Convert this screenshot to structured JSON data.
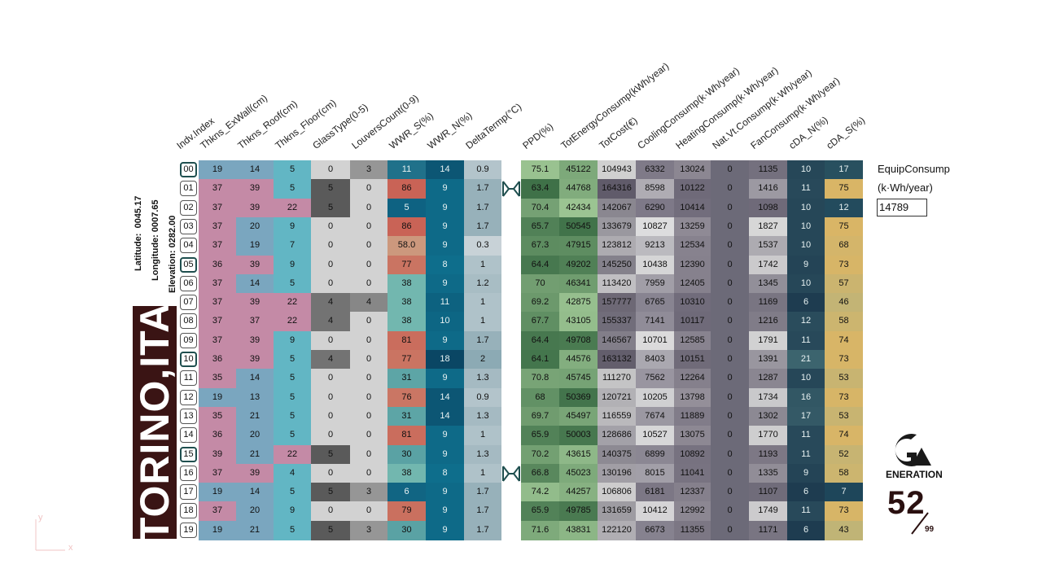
{
  "location": {
    "latitude_label": "Latitude:",
    "latitude_value": "0045.17",
    "longitude_label": "Longitude:",
    "longitude_value": "0007.65",
    "elevation_label": "Elevation:",
    "elevation_value": "0282.00",
    "city": "TORINO,ITA"
  },
  "equip": {
    "label1": "EquipConsump",
    "label2": "(k·Wh/year)",
    "value": "14789"
  },
  "logo": {
    "text": "ENERATION",
    "count": "52",
    "total": "99"
  },
  "axis_hint": {
    "y": "y",
    "x": "x"
  },
  "colors": {
    "pink": "#c48aa6",
    "blue": "#7aa6bf",
    "teal": "#62b6c4",
    "green_dark": "#567f5a",
    "dark_teal": "#1f4f5a",
    "gold": "#d9b566",
    "gray": "#8e8e8e",
    "slate": "#6c6a78"
  },
  "chart_data": {
    "type": "table",
    "columns": [
      "Indv.Index",
      "Thkns_ExWall(cm)",
      "Thkns_Roof(cm)",
      "Thkns_Floor(cm)",
      "GlassType(0-5)",
      "LouversCount(0-9)",
      "WWR_S(%)",
      "WWR_N(%)",
      "DeltaTermp(°C)",
      "PPD(%)",
      "TotEnergyConsump(kWh/year)",
      "TotCost(€)",
      "CoolingConsump(k·Wh/year)",
      "HeatingConsump(k·Wh/year)",
      "Nat.Vt.Consump(k·Wh/year)",
      "FanConsump(k·Wh/year)",
      "cDA_N(%)",
      "cDA_S(%)"
    ],
    "rows": [
      [
        "00",
        "19",
        "14",
        "5",
        "0",
        "3",
        "11",
        "14",
        "0.9",
        "75.1",
        "45122",
        "104943",
        "6332",
        "13024",
        "0",
        "1135",
        "10",
        "17"
      ],
      [
        "01",
        "37",
        "39",
        "5",
        "5",
        "0",
        "86",
        "9",
        "1.7",
        "63.4",
        "44768",
        "164316",
        "8598",
        "10122",
        "0",
        "1416",
        "11",
        "75"
      ],
      [
        "02",
        "37",
        "39",
        "22",
        "5",
        "0",
        "5",
        "9",
        "1.7",
        "70.4",
        "42434",
        "142067",
        "6290",
        "10414",
        "0",
        "1098",
        "10",
        "12"
      ],
      [
        "03",
        "37",
        "20",
        "9",
        "0",
        "0",
        "86",
        "9",
        "1.7",
        "65.7",
        "50545",
        "133679",
        "10827",
        "13259",
        "0",
        "1827",
        "10",
        "75"
      ],
      [
        "04",
        "37",
        "19",
        "7",
        "0",
        "0",
        "58.0",
        "9",
        "0.3",
        "67.3",
        "47915",
        "123812",
        "9213",
        "12534",
        "0",
        "1537",
        "10",
        "68"
      ],
      [
        "05",
        "36",
        "39",
        "9",
        "0",
        "0",
        "77",
        "8",
        "1",
        "64.4",
        "49202",
        "145250",
        "10438",
        "12390",
        "0",
        "1742",
        "9",
        "73"
      ],
      [
        "06",
        "37",
        "14",
        "5",
        "0",
        "0",
        "38",
        "9",
        "1.2",
        "70",
        "46341",
        "113420",
        "7959",
        "12405",
        "0",
        "1345",
        "10",
        "57"
      ],
      [
        "07",
        "37",
        "39",
        "22",
        "4",
        "4",
        "38",
        "11",
        "1",
        "69.2",
        "42875",
        "157777",
        "6765",
        "10310",
        "0",
        "1169",
        "6",
        "46"
      ],
      [
        "08",
        "37",
        "37",
        "22",
        "4",
        "0",
        "38",
        "10",
        "1",
        "67.7",
        "43105",
        "155337",
        "7141",
        "10117",
        "0",
        "1216",
        "12",
        "58"
      ],
      [
        "09",
        "37",
        "39",
        "9",
        "0",
        "0",
        "81",
        "9",
        "1.7",
        "64.4",
        "49708",
        "146567",
        "10701",
        "12585",
        "0",
        "1791",
        "11",
        "74"
      ],
      [
        "10",
        "36",
        "39",
        "5",
        "4",
        "0",
        "77",
        "18",
        "2",
        "64.1",
        "44576",
        "163132",
        "8403",
        "10151",
        "0",
        "1391",
        "21",
        "73"
      ],
      [
        "11",
        "35",
        "14",
        "5",
        "0",
        "0",
        "31",
        "9",
        "1.3",
        "70.8",
        "45745",
        "111270",
        "7562",
        "12264",
        "0",
        "1287",
        "10",
        "53"
      ],
      [
        "12",
        "19",
        "13",
        "5",
        "0",
        "0",
        "76",
        "14",
        "0.9",
        "68",
        "50369",
        "120721",
        "10205",
        "13798",
        "0",
        "1734",
        "16",
        "73"
      ],
      [
        "13",
        "35",
        "21",
        "5",
        "0",
        "0",
        "31",
        "14",
        "1.3",
        "69.7",
        "45497",
        "116559",
        "7674",
        "11889",
        "0",
        "1302",
        "17",
        "53"
      ],
      [
        "14",
        "36",
        "20",
        "5",
        "0",
        "0",
        "81",
        "9",
        "1",
        "65.9",
        "50003",
        "128686",
        "10527",
        "13075",
        "0",
        "1770",
        "11",
        "74"
      ],
      [
        "15",
        "39",
        "21",
        "22",
        "5",
        "0",
        "30",
        "9",
        "1.3",
        "70.2",
        "43615",
        "140375",
        "6899",
        "10892",
        "0",
        "1193",
        "11",
        "52"
      ],
      [
        "16",
        "37",
        "39",
        "4",
        "0",
        "0",
        "38",
        "8",
        "1",
        "66.8",
        "45023",
        "130196",
        "8015",
        "11041",
        "0",
        "1335",
        "9",
        "58"
      ],
      [
        "17",
        "19",
        "14",
        "5",
        "5",
        "3",
        "6",
        "9",
        "1.7",
        "74.2",
        "44257",
        "106806",
        "6181",
        "12337",
        "0",
        "1107",
        "6",
        "7"
      ],
      [
        "18",
        "37",
        "20",
        "9",
        "0",
        "0",
        "79",
        "9",
        "1.7",
        "65.9",
        "49785",
        "131659",
        "10412",
        "12992",
        "0",
        "1749",
        "11",
        "73"
      ],
      [
        "19",
        "19",
        "21",
        "5",
        "5",
        "3",
        "30",
        "9",
        "1.7",
        "71.6",
        "43831",
        "122120",
        "6673",
        "11355",
        "0",
        "1171",
        "6",
        "43"
      ]
    ],
    "highlighted_rows": [
      "00",
      "05",
      "10",
      "15"
    ],
    "linked_rows": [
      "01",
      "16"
    ]
  }
}
